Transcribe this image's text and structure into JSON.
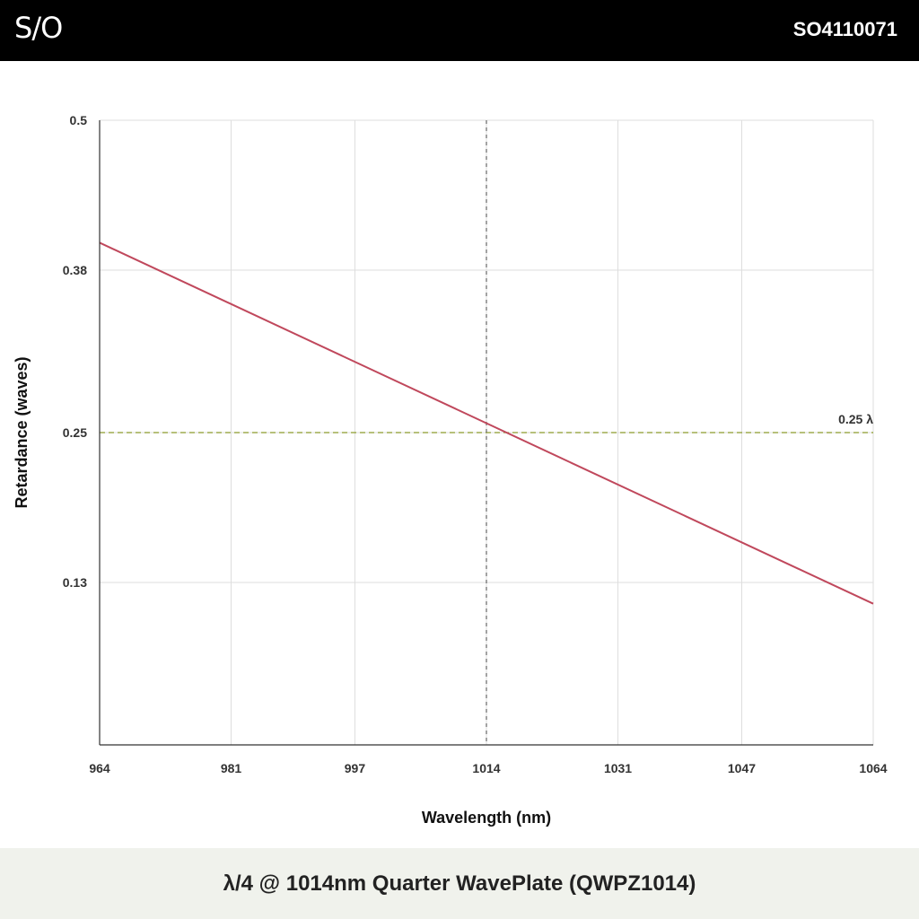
{
  "header": {
    "logo_text": "S/O",
    "part_number": "SO4110071"
  },
  "footer": {
    "title": "λ/4 @ 1014nm Quarter WavePlate (QWPZ1014)"
  },
  "colors": {
    "series": "#c0485c",
    "reference_line": "#8a9a2a",
    "center_line": "#666666",
    "grid": "#dddddd"
  },
  "chart_data": {
    "type": "line",
    "title": "",
    "xlabel": "Wavelength (nm)",
    "ylabel": "Retardance (waves)",
    "xlim": [
      964,
      1064
    ],
    "ylim": [
      0,
      0.5
    ],
    "x_ticks": [
      "964",
      "981",
      "997",
      "1014",
      "1031",
      "1047",
      "1064"
    ],
    "y_ticks": [
      "0.13",
      "0.25",
      "0.38",
      "0.5"
    ],
    "grid": true,
    "legend": "none",
    "series": [
      {
        "x": [
          964,
          1064
        ],
        "y": [
          0.402,
          0.113
        ]
      }
    ],
    "reference_lines": [
      {
        "axis": "y",
        "value": 0.25,
        "label": "0.25 λ",
        "style": "dashed"
      },
      {
        "axis": "x",
        "value": 1014,
        "label": "",
        "style": "dashed"
      }
    ]
  }
}
